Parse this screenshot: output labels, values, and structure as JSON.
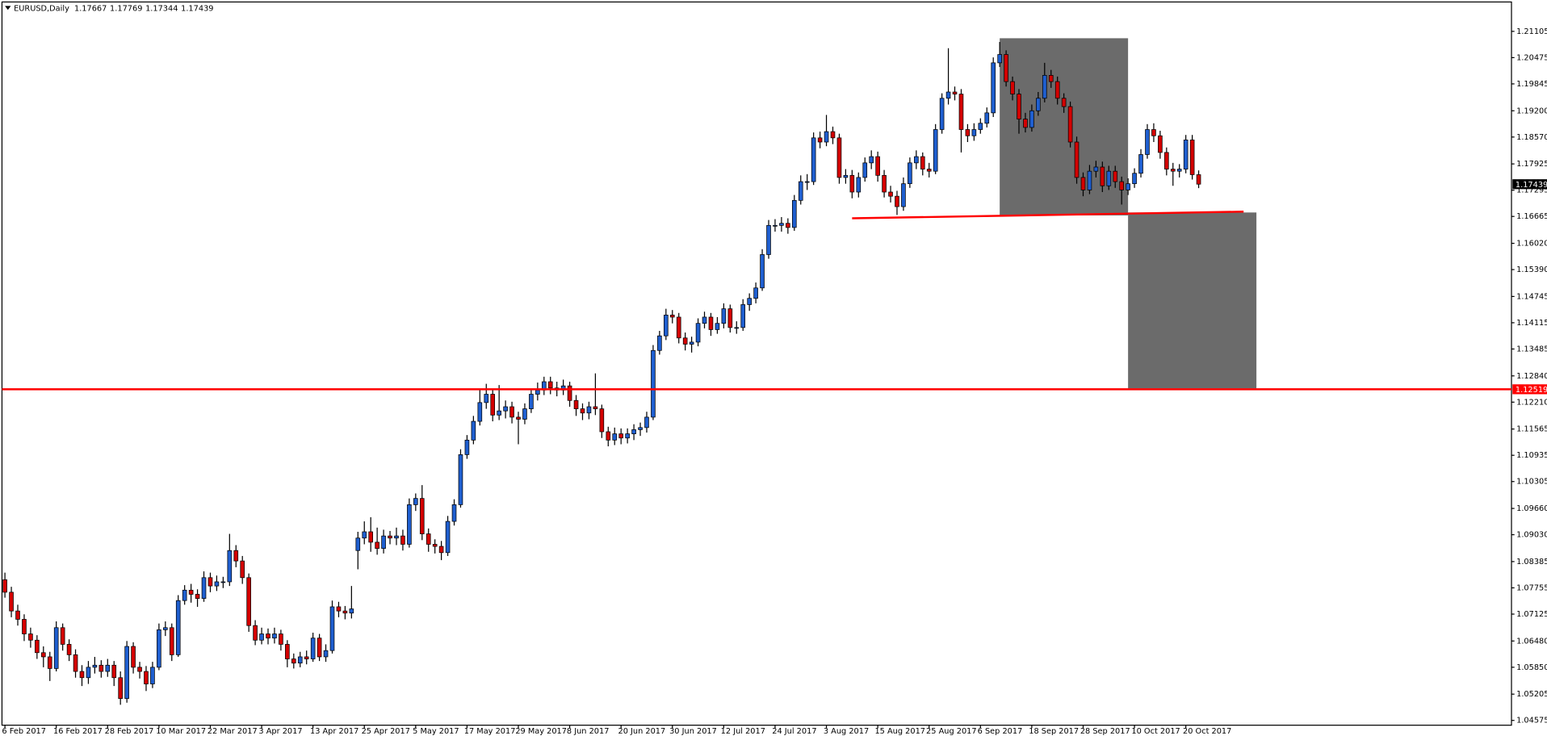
{
  "chart_data": {
    "type": "candlestick",
    "title": "EURUSD,Daily",
    "categories": [
      "6 Feb 2017",
      null,
      null,
      null,
      null,
      null,
      null,
      null,
      "16 Feb 2017",
      null,
      null,
      null,
      null,
      null,
      null,
      null,
      "28 Feb 2017",
      null,
      null,
      null,
      null,
      null,
      null,
      null,
      "10 Mar 2017",
      null,
      null,
      null,
      null,
      null,
      null,
      null,
      "22 Mar 2017",
      null,
      null,
      null,
      null,
      null,
      null,
      null,
      "3 Apr 2017",
      null,
      null,
      null,
      null,
      null,
      null,
      null,
      "13 Apr 2017",
      null,
      null,
      null,
      null,
      null,
      null,
      null,
      "25 Apr 2017",
      null,
      null,
      null,
      null,
      null,
      null,
      null,
      "5 May 2017",
      null,
      null,
      null,
      null,
      null,
      null,
      null,
      "17 May 2017",
      null,
      null,
      null,
      null,
      null,
      null,
      null,
      "29 May 2017",
      null,
      null,
      null,
      null,
      null,
      null,
      null,
      "8 Jun 2017",
      null,
      null,
      null,
      null,
      null,
      null,
      null,
      "20 Jun 2017",
      null,
      null,
      null,
      null,
      null,
      null,
      null,
      "30 Jun 2017",
      null,
      null,
      null,
      null,
      null,
      null,
      null,
      "12 Jul 2017",
      null,
      null,
      null,
      null,
      null,
      null,
      null,
      "24 Jul 2017",
      null,
      null,
      null,
      null,
      null,
      null,
      null,
      "3 Aug 2017",
      null,
      null,
      null,
      null,
      null,
      null,
      null,
      "15 Aug 2017",
      null,
      null,
      null,
      null,
      null,
      null,
      null,
      "25 Aug 2017",
      null,
      null,
      null,
      null,
      null,
      null,
      null,
      "6 Sep 2017",
      null,
      null,
      null,
      null,
      null,
      null,
      null,
      "18 Sep 2017",
      null,
      null,
      null,
      null,
      null,
      null,
      null,
      "28 Sep 2017",
      null,
      null,
      null,
      null,
      null,
      null,
      null,
      "10 Oct 2017",
      null,
      null,
      null,
      null,
      null,
      null,
      null,
      "20 Oct 2017",
      null,
      null
    ],
    "open": [
      1.0795,
      1.0765,
      1.072,
      1.07,
      1.0665,
      1.065,
      1.062,
      1.061,
      1.0582,
      1.068,
      1.064,
      1.0615,
      1.0575,
      1.056,
      1.0585,
      1.059,
      1.0575,
      1.059,
      1.056,
      1.051,
      1.0635,
      1.0585,
      1.0575,
      1.0545,
      1.0585,
      1.0675,
      1.068,
      1.0615,
      1.0745,
      1.077,
      1.076,
      1.075,
      1.08,
      1.078,
      1.079,
      1.079,
      1.0865,
      1.084,
      1.08,
      1.0685,
      1.065,
      1.0665,
      1.0655,
      1.0665,
      1.064,
      1.0605,
      1.0595,
      1.061,
      1.0605,
      1.0655,
      1.061,
      1.0625,
      1.073,
      1.072,
      1.0715,
      1.0865,
      1.0895,
      1.091,
      1.0885,
      1.087,
      1.09,
      1.0895,
      1.09,
      1.088,
      1.0975,
      1.099,
      1.0905,
      1.088,
      1.0875,
      1.086,
      1.0935,
      1.0975,
      1.1095,
      1.113,
      1.1175,
      1.122,
      1.124,
      1.119,
      1.12,
      1.121,
      1.1185,
      1.118,
      1.1205,
      1.124,
      1.125,
      1.127,
      1.1255,
      1.125,
      1.126,
      1.1225,
      1.1205,
      1.1195,
      1.121,
      1.1205,
      1.115,
      1.113,
      1.1145,
      1.1135,
      1.1145,
      1.1155,
      1.116,
      1.1185,
      1.1345,
      1.138,
      1.143,
      1.1425,
      1.1375,
      1.136,
      1.1365,
      1.141,
      1.1425,
      1.1395,
      1.141,
      1.1445,
      1.14,
      1.14,
      1.1455,
      1.147,
      1.1495,
      1.1575,
      1.1645,
      1.1645,
      1.165,
      1.164,
      1.1705,
      1.175,
      1.175,
      1.1855,
      1.1845,
      1.187,
      1.1855,
      1.176,
      1.1765,
      1.1725,
      1.176,
      1.1795,
      1.181,
      1.1765,
      1.1725,
      1.1715,
      1.169,
      1.1745,
      1.1795,
      1.181,
      1.178,
      1.1775,
      1.1875,
      1.195,
      1.1965,
      1.196,
      1.1875,
      1.186,
      1.1875,
      1.189,
      1.1915,
      1.2035,
      1.2055,
      1.199,
      1.196,
      1.19,
      1.188,
      1.192,
      1.195,
      1.2005,
      1.199,
      1.195,
      1.193,
      1.1845,
      1.176,
      1.173,
      1.1775,
      1.1785,
      1.174,
      1.1775,
      1.175,
      1.173,
      1.1745,
      1.177,
      1.1815,
      1.1875,
      1.186,
      1.182,
      1.178,
      1.1775,
      1.178,
      1.185,
      1.17667
    ],
    "high": [
      1.0812,
      1.0778,
      1.0735,
      1.0712,
      1.068,
      1.0662,
      1.0635,
      1.0622,
      1.0695,
      1.069,
      1.0652,
      1.0628,
      1.059,
      1.06,
      1.061,
      1.0602,
      1.0605,
      1.06,
      1.0575,
      1.0648,
      1.0645,
      1.0598,
      1.0588,
      1.0598,
      1.069,
      1.0695,
      1.069,
      1.0758,
      1.0782,
      1.0785,
      1.0772,
      1.0815,
      1.0812,
      1.0805,
      1.0802,
      1.0905,
      1.0878,
      1.0852,
      1.081,
      1.0698,
      1.068,
      1.0678,
      1.068,
      1.0675,
      1.065,
      1.0618,
      1.0622,
      1.0625,
      1.0668,
      1.0665,
      1.064,
      1.0745,
      1.0742,
      1.0732,
      1.078,
      1.091,
      1.0935,
      1.0945,
      1.092,
      1.0915,
      1.0912,
      1.092,
      1.0915,
      1.099,
      1.1002,
      1.1022,
      1.0918,
      1.0892,
      1.0888,
      1.0948,
      1.0988,
      1.1108,
      1.1142,
      1.1188,
      1.125,
      1.1265,
      1.1252,
      1.1262,
      1.1225,
      1.1222,
      1.1198,
      1.1218,
      1.1252,
      1.1268,
      1.1282,
      1.1282,
      1.127,
      1.1275,
      1.127,
      1.1238,
      1.1218,
      1.1222,
      1.129,
      1.1215,
      1.1162,
      1.116,
      1.1158,
      1.1158,
      1.1168,
      1.1172,
      1.1198,
      1.1358,
      1.1392,
      1.1445,
      1.1442,
      1.1435,
      1.1388,
      1.1378,
      1.1422,
      1.1438,
      1.1435,
      1.1425,
      1.1458,
      1.1455,
      1.1415,
      1.1468,
      1.1482,
      1.1508,
      1.1588,
      1.1658,
      1.166,
      1.1665,
      1.1662,
      1.1718,
      1.1765,
      1.1768,
      1.1868,
      1.187,
      1.191,
      1.1882,
      1.1865,
      1.178,
      1.1778,
      1.1772,
      1.1808,
      1.1825,
      1.1822,
      1.1778,
      1.174,
      1.1728,
      1.176,
      1.1808,
      1.1825,
      1.182,
      1.1795,
      1.1888,
      1.1962,
      1.207,
      1.1978,
      1.1972,
      1.1888,
      1.189,
      1.1902,
      1.1928,
      1.2048,
      1.2085,
      1.2065,
      1.2002,
      1.1972,
      1.1915,
      1.1935,
      1.1965,
      1.2035,
      1.2018,
      1.2002,
      1.1962,
      1.1942,
      1.1858,
      1.1772,
      1.179,
      1.18,
      1.1798,
      1.1788,
      1.1788,
      1.1762,
      1.1758,
      1.1782,
      1.1828,
      1.1888,
      1.189,
      1.1872,
      1.1832,
      1.1795,
      1.1792,
      1.1862,
      1.1862,
      1.17769
    ],
    "low": [
      1.0752,
      1.0705,
      1.0685,
      1.0648,
      1.0632,
      1.0605,
      1.0585,
      1.0552,
      1.0575,
      1.0625,
      1.06,
      1.056,
      1.054,
      1.0545,
      1.057,
      1.056,
      1.0562,
      1.054,
      1.0495,
      1.05,
      1.057,
      1.0558,
      1.0528,
      1.0535,
      1.0578,
      1.066,
      1.06,
      1.061,
      1.0735,
      1.074,
      1.073,
      1.0742,
      1.0765,
      1.0768,
      1.0775,
      1.078,
      1.0825,
      1.0785,
      1.067,
      1.0638,
      1.064,
      1.064,
      1.0642,
      1.0625,
      1.0585,
      1.0582,
      1.0585,
      1.0592,
      1.0598,
      1.06,
      1.0598,
      1.0618,
      1.0705,
      1.07,
      1.0702,
      1.082,
      1.088,
      1.0862,
      1.0855,
      1.0858,
      1.088,
      1.0878,
      1.0865,
      1.0872,
      1.096,
      1.089,
      1.0862,
      1.0858,
      1.0842,
      1.0852,
      1.0925,
      1.0968,
      1.1085,
      1.112,
      1.1165,
      1.1205,
      1.1175,
      1.1178,
      1.1182,
      1.117,
      1.112,
      1.1168,
      1.1195,
      1.1225,
      1.1238,
      1.124,
      1.1235,
      1.1238,
      1.121,
      1.1188,
      1.1178,
      1.118,
      1.119,
      1.1135,
      1.1115,
      1.1118,
      1.112,
      1.1122,
      1.113,
      1.114,
      1.1148,
      1.1178,
      1.1335,
      1.137,
      1.141,
      1.1362,
      1.1345,
      1.134,
      1.1355,
      1.1398,
      1.138,
      1.1385,
      1.1398,
      1.1388,
      1.1385,
      1.1392,
      1.144,
      1.1458,
      1.1488,
      1.1565,
      1.163,
      1.163,
      1.1625,
      1.1632,
      1.1695,
      1.173,
      1.1742,
      1.183,
      1.1835,
      1.184,
      1.1745,
      1.1745,
      1.171,
      1.1712,
      1.175,
      1.178,
      1.175,
      1.1712,
      1.17,
      1.167,
      1.168,
      1.1735,
      1.178,
      1.1765,
      1.176,
      1.1768,
      1.1865,
      1.1935,
      1.1945,
      1.182,
      1.1845,
      1.1848,
      1.1865,
      1.188,
      1.1905,
      1.2025,
      1.1978,
      1.1945,
      1.1865,
      1.1868,
      1.187,
      1.1908,
      1.194,
      1.1975,
      1.1935,
      1.1915,
      1.1832,
      1.1745,
      1.1715,
      1.172,
      1.176,
      1.1725,
      1.173,
      1.1735,
      1.1695,
      1.1718,
      1.1735,
      1.176,
      1.1805,
      1.1845,
      1.1805,
      1.1765,
      1.174,
      1.176,
      1.177,
      1.1755,
      1.17344
    ],
    "close": [
      1.0765,
      1.072,
      1.07,
      1.0665,
      1.065,
      1.062,
      1.061,
      1.0582,
      1.068,
      1.064,
      1.0615,
      1.0575,
      1.056,
      1.0585,
      1.059,
      1.0575,
      1.059,
      1.056,
      1.051,
      1.0635,
      1.0585,
      1.0575,
      1.0545,
      1.0585,
      1.0675,
      1.068,
      1.0615,
      1.0745,
      1.077,
      1.076,
      1.075,
      1.08,
      1.078,
      1.079,
      1.079,
      1.0865,
      1.084,
      1.08,
      1.0685,
      1.065,
      1.0665,
      1.0655,
      1.0665,
      1.064,
      1.0605,
      1.0595,
      1.061,
      1.0605,
      1.0655,
      1.061,
      1.0625,
      1.073,
      1.072,
      1.0715,
      1.0725,
      1.0895,
      1.091,
      1.0885,
      1.087,
      1.09,
      1.0895,
      1.09,
      1.088,
      1.0975,
      1.099,
      1.0905,
      1.088,
      1.0875,
      1.086,
      1.0935,
      1.0975,
      1.1095,
      1.113,
      1.1175,
      1.122,
      1.124,
      1.119,
      1.12,
      1.121,
      1.1185,
      1.118,
      1.1205,
      1.124,
      1.125,
      1.127,
      1.1255,
      1.125,
      1.126,
      1.1225,
      1.1205,
      1.1195,
      1.121,
      1.1205,
      1.115,
      1.113,
      1.1145,
      1.1135,
      1.1145,
      1.1155,
      1.116,
      1.1185,
      1.1345,
      1.138,
      1.143,
      1.1425,
      1.1375,
      1.136,
      1.1365,
      1.141,
      1.1425,
      1.1395,
      1.141,
      1.1445,
      1.14,
      1.14,
      1.1455,
      1.147,
      1.1495,
      1.1575,
      1.1645,
      1.1645,
      1.165,
      1.164,
      1.1705,
      1.175,
      1.175,
      1.1855,
      1.1845,
      1.187,
      1.1855,
      1.176,
      1.1765,
      1.1725,
      1.176,
      1.1795,
      1.181,
      1.1765,
      1.1725,
      1.1715,
      1.169,
      1.1745,
      1.1795,
      1.181,
      1.178,
      1.1775,
      1.1875,
      1.195,
      1.1965,
      1.196,
      1.1875,
      1.186,
      1.1875,
      1.189,
      1.1915,
      1.2035,
      1.2055,
      1.199,
      1.196,
      1.19,
      1.188,
      1.192,
      1.195,
      1.2005,
      1.199,
      1.195,
      1.193,
      1.1845,
      1.176,
      1.173,
      1.1775,
      1.1785,
      1.174,
      1.1775,
      1.175,
      1.173,
      1.1745,
      1.177,
      1.1815,
      1.1875,
      1.186,
      1.182,
      1.178,
      1.1775,
      1.178,
      1.185,
      1.17667,
      1.17439
    ],
    "colors": {
      "up": "#1f5fd0",
      "down": "#d40000",
      "wick": "#000000",
      "current": "#000000"
    },
    "ylim": [
      1.0446,
      1.2181
    ],
    "yticks": [
      1.21105,
      1.20475,
      1.19845,
      {
        "value": 1.192,
        "label": "1.19200"
      },
      {
        "value": 1.1857,
        "label": "1.18570"
      },
      1.17925,
      1.17295,
      1.16665,
      {
        "value": 1.1602,
        "label": "1.16020"
      },
      {
        "value": 1.1539,
        "label": "1.15390"
      },
      1.14745,
      1.14115,
      1.13485,
      {
        "value": 1.1284,
        "label": "1.12840"
      },
      {
        "value": 1.1221,
        "label": "1.12210"
      },
      1.11565,
      1.10935,
      1.10305,
      {
        "value": 1.0966,
        "label": "1.09660"
      },
      {
        "value": 1.0903,
        "label": "1.09030"
      },
      1.08385,
      1.07755,
      1.07125,
      {
        "value": 1.0648,
        "label": "1.06480"
      },
      {
        "value": 1.0585,
        "label": "1.05850"
      },
      1.05205,
      1.04575
    ],
    "grid": false,
    "hlines": [
      {
        "value": 1.12519,
        "color": "#ff0000"
      }
    ],
    "trendlines": [
      {
        "x": [
          132,
          193
        ],
        "y": [
          1.1662,
          1.1678
        ],
        "color": "#ff0000"
      }
    ],
    "rectangles": [
      {
        "x": [
          155,
          175
        ],
        "y": [
          1.2094,
          1.1669
        ],
        "color": "#6b6b6b"
      },
      {
        "x": [
          175,
          195
        ],
        "y": [
          1.1676,
          1.1254
        ],
        "color": "#6b6b6b"
      }
    ]
  }
}
